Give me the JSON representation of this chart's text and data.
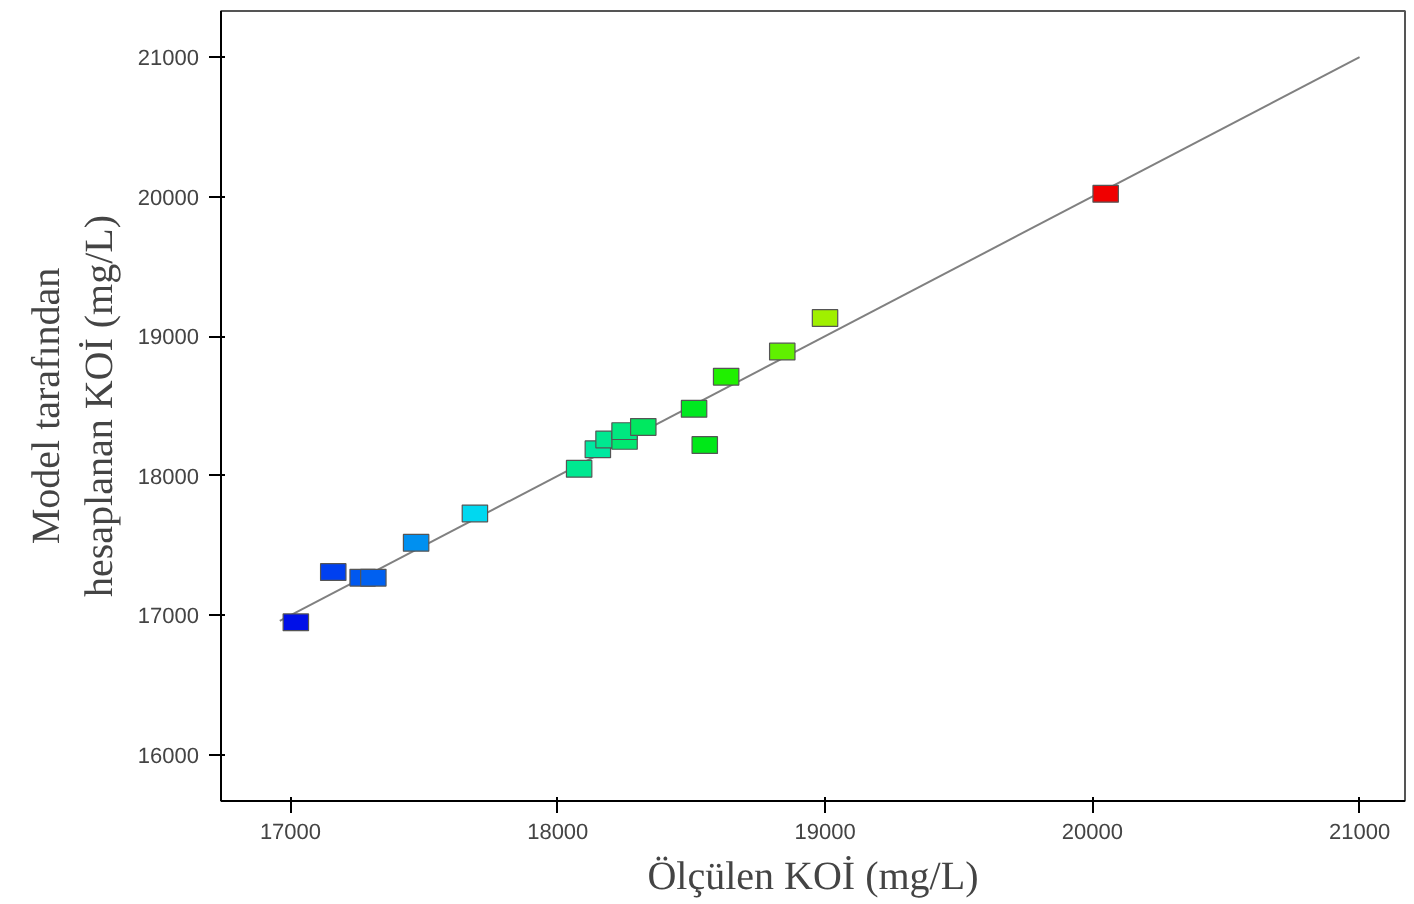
{
  "chart_data": {
    "type": "scatter",
    "xlabel": "Ölçülen KOİ (mg/L)",
    "ylabel": "Model tarafından\nhesaplanan KOİ (mg/L)",
    "xlim": [
      16740,
      21170
    ],
    "ylim": [
      15670,
      21330
    ],
    "xticks": [
      17000,
      18000,
      19000,
      20000,
      21000
    ],
    "yticks": [
      16000,
      17000,
      18000,
      19000,
      20000,
      21000
    ],
    "grid": false,
    "marker": "square",
    "series": [
      {
        "type": "line",
        "marker": "none",
        "color": "#808080",
        "x": [
          16960,
          21000
        ],
        "values": [
          16960,
          21000
        ]
      },
      {
        "x": [
          17020,
          17160,
          17270,
          17310,
          17470,
          17690,
          18080,
          18150,
          18190,
          18250,
          18250,
          18320,
          18510,
          18550,
          18630,
          18840,
          19000,
          20050
        ],
        "values": [
          16950,
          17310,
          17270,
          17270,
          17520,
          17730,
          18050,
          18190,
          18260,
          18250,
          18320,
          18350,
          18480,
          18220,
          18710,
          18890,
          19130,
          20020
        ],
        "colors": [
          "#0010e8",
          "#0040f0",
          "#0058f0",
          "#0060f0",
          "#0090f0",
          "#00d8f0",
          "#00e890",
          "#00e8a0",
          "#00e890",
          "#00e870",
          "#00e880",
          "#00e860",
          "#00e820",
          "#00e818",
          "#20f000",
          "#60f000",
          "#a0f000",
          "#f00000"
        ]
      }
    ]
  }
}
